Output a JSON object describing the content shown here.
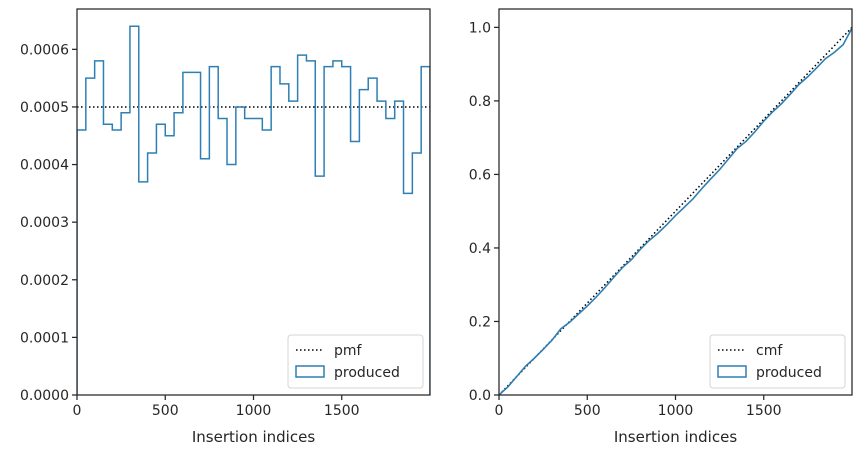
{
  "chart_data": [
    {
      "type": "step",
      "xlabel": "Insertion indices",
      "ylabel": "",
      "xlim": [
        0,
        2000
      ],
      "ylim": [
        0,
        0.00067
      ],
      "xticks": [
        0,
        500,
        1000,
        1500
      ],
      "xtick_labels": [
        "0",
        "500",
        "1000",
        "1500"
      ],
      "yticks": [
        0,
        0.0001,
        0.0002,
        0.0003,
        0.0004,
        0.0005,
        0.0006
      ],
      "ytick_labels": [
        "0.0000",
        "0.0001",
        "0.0002",
        "0.0003",
        "0.0004",
        "0.0005",
        "0.0006"
      ],
      "legend_position": "lower-right",
      "series": [
        {
          "name": "pmf",
          "style": "dotted",
          "color": "#000000",
          "x": [
            0,
            2000
          ],
          "y": [
            0.0005,
            0.0005
          ]
        },
        {
          "name": "produced",
          "style": "step",
          "color": "#2e7fb5",
          "bin_edges": [
            0,
            50,
            100,
            150,
            200,
            250,
            300,
            350,
            400,
            450,
            500,
            550,
            600,
            650,
            700,
            750,
            800,
            850,
            900,
            950,
            1000,
            1050,
            1100,
            1150,
            1200,
            1250,
            1300,
            1350,
            1400,
            1450,
            1500,
            1550,
            1600,
            1650,
            1700,
            1750,
            1800,
            1850,
            1900,
            1950,
            2000
          ],
          "values": [
            0.00046,
            0.00055,
            0.00058,
            0.00047,
            0.00046,
            0.00049,
            0.00064,
            0.00037,
            0.00042,
            0.00047,
            0.00045,
            0.00049,
            0.00056,
            0.00056,
            0.00041,
            0.00057,
            0.00048,
            0.0004,
            0.0005,
            0.00048,
            0.00048,
            0.00046,
            0.00057,
            0.00054,
            0.00051,
            0.00059,
            0.00058,
            0.00038,
            0.00057,
            0.00058,
            0.00057,
            0.00044,
            0.00053,
            0.00055,
            0.00051,
            0.00048,
            0.00051,
            0.00035,
            0.00042,
            0.00057
          ]
        }
      ]
    },
    {
      "type": "step",
      "xlabel": "Insertion indices",
      "ylabel": "",
      "xlim": [
        0,
        2000
      ],
      "ylim": [
        0,
        1.05
      ],
      "xticks": [
        0,
        500,
        1000,
        1500
      ],
      "xtick_labels": [
        "0",
        "500",
        "1000",
        "1500"
      ],
      "yticks": [
        0,
        0.2,
        0.4,
        0.6,
        0.8,
        1.0
      ],
      "ytick_labels": [
        "0.0",
        "0.2",
        "0.4",
        "0.6",
        "0.8",
        "1.0"
      ],
      "legend_position": "lower-right",
      "series": [
        {
          "name": "cmf",
          "style": "dotted",
          "color": "#000000",
          "x": [
            0,
            2000
          ],
          "y": [
            0,
            1
          ]
        },
        {
          "name": "produced",
          "style": "line",
          "color": "#2e7fb5",
          "x": [
            0,
            50,
            100,
            150,
            200,
            250,
            300,
            350,
            400,
            450,
            500,
            550,
            600,
            650,
            700,
            750,
            800,
            850,
            900,
            950,
            1000,
            1050,
            1100,
            1150,
            1200,
            1250,
            1300,
            1350,
            1400,
            1450,
            1500,
            1550,
            1600,
            1650,
            1700,
            1750,
            1800,
            1850,
            1900,
            1950,
            2000
          ],
          "y": [
            0,
            0.022,
            0.05,
            0.078,
            0.1,
            0.124,
            0.149,
            0.18,
            0.198,
            0.22,
            0.242,
            0.266,
            0.292,
            0.32,
            0.347,
            0.368,
            0.396,
            0.42,
            0.44,
            0.463,
            0.488,
            0.511,
            0.534,
            0.562,
            0.588,
            0.613,
            0.642,
            0.671,
            0.69,
            0.716,
            0.745,
            0.77,
            0.792,
            0.818,
            0.845,
            0.866,
            0.89,
            0.915,
            0.932,
            0.953,
            0.998
          ]
        }
      ]
    }
  ]
}
